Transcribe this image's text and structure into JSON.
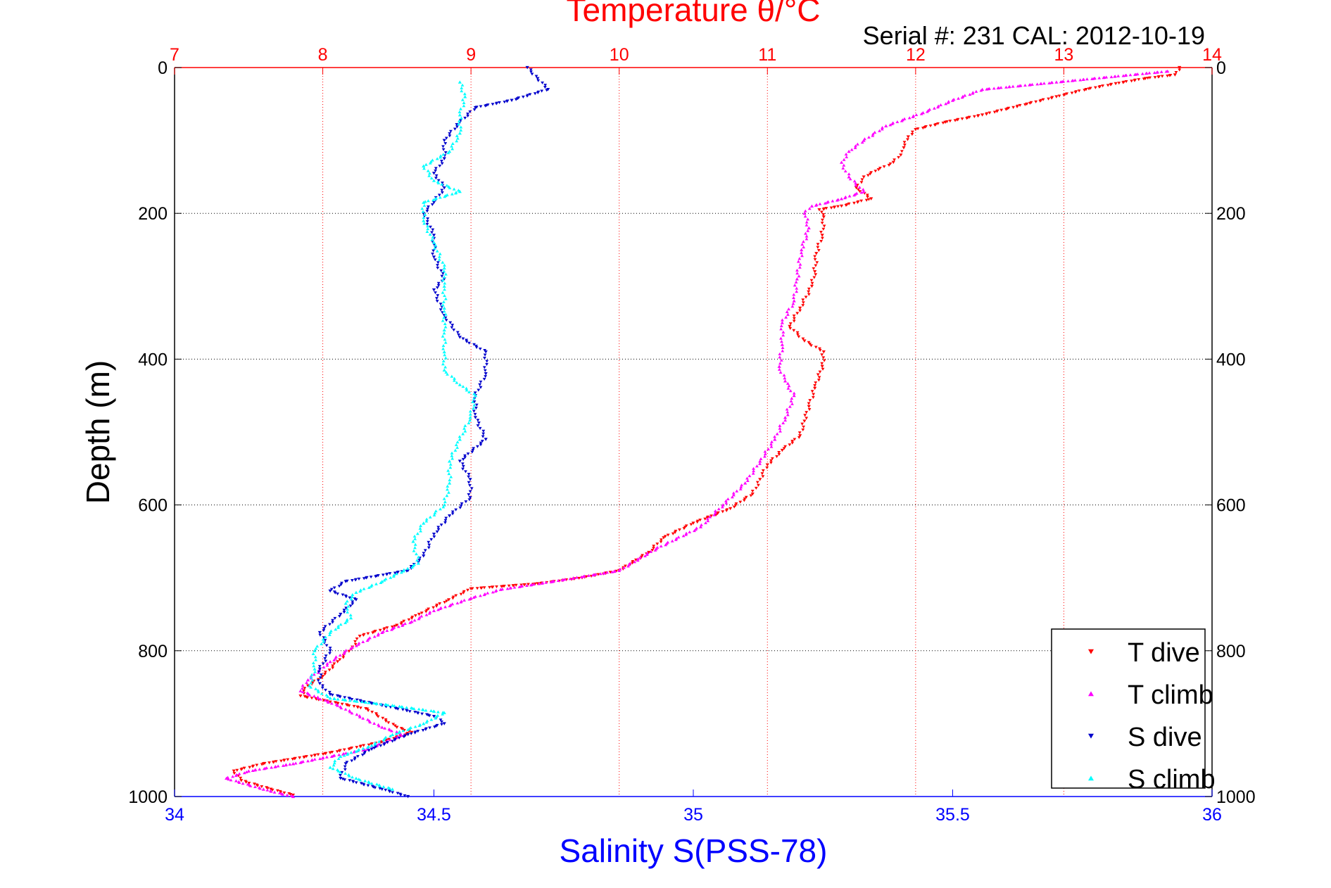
{
  "chart_data": {
    "type": "scatter",
    "title": "Temperature θ/°C",
    "subtitle": "Serial #: 231  CAL: 2012-10-19",
    "ylabel": "Depth (m)",
    "xlabel": "Salinity S(PSS-78)",
    "ylim": [
      0,
      1000
    ],
    "y_reversed": true,
    "x_bottom": {
      "label": "Salinity S(PSS-78)",
      "lim": [
        34,
        36
      ],
      "ticks": [
        34,
        34.5,
        35,
        35.5,
        36
      ],
      "color": "#0000ff"
    },
    "x_top": {
      "label": "Temperature θ/°C",
      "lim": [
        7,
        14
      ],
      "ticks": [
        7,
        8,
        9,
        10,
        11,
        12,
        13,
        14
      ],
      "color": "#ff0000"
    },
    "y_ticks": [
      0,
      200,
      400,
      600,
      800,
      1000
    ],
    "grid": true,
    "legend_position": "bottom-right",
    "series": [
      {
        "name": "T dive",
        "axis": "top",
        "marker": "triangle-down",
        "color": "#ff0000",
        "points": [
          [
            13.78,
            0
          ],
          [
            13.75,
            10
          ],
          [
            13.55,
            15
          ],
          [
            13.35,
            22
          ],
          [
            13.15,
            30
          ],
          [
            12.95,
            40
          ],
          [
            12.75,
            50
          ],
          [
            12.45,
            65
          ],
          [
            12.2,
            75
          ],
          [
            12.0,
            85
          ],
          [
            11.95,
            95
          ],
          [
            11.92,
            110
          ],
          [
            11.9,
            120
          ],
          [
            11.85,
            130
          ],
          [
            11.75,
            140
          ],
          [
            11.65,
            150
          ],
          [
            11.6,
            165
          ],
          [
            11.7,
            180
          ],
          [
            11.5,
            190
          ],
          [
            11.35,
            195
          ],
          [
            11.38,
            205
          ],
          [
            11.37,
            230
          ],
          [
            11.33,
            255
          ],
          [
            11.32,
            280
          ],
          [
            11.3,
            300
          ],
          [
            11.22,
            330
          ],
          [
            11.15,
            355
          ],
          [
            11.25,
            375
          ],
          [
            11.38,
            390
          ],
          [
            11.37,
            410
          ],
          [
            11.32,
            440
          ],
          [
            11.28,
            465
          ],
          [
            11.25,
            485
          ],
          [
            11.22,
            505
          ],
          [
            11.1,
            525
          ],
          [
            11.0,
            545
          ],
          [
            10.95,
            565
          ],
          [
            10.9,
            585
          ],
          [
            10.75,
            605
          ],
          [
            10.5,
            625
          ],
          [
            10.3,
            645
          ],
          [
            10.2,
            665
          ],
          [
            10.0,
            690
          ],
          [
            9.75,
            700
          ],
          [
            9.45,
            708
          ],
          [
            9.0,
            715
          ],
          [
            8.85,
            730
          ],
          [
            8.65,
            750
          ],
          [
            8.5,
            765
          ],
          [
            8.25,
            780
          ],
          [
            8.2,
            795
          ],
          [
            8.1,
            815
          ],
          [
            8.0,
            835
          ],
          [
            7.9,
            848
          ],
          [
            7.85,
            862
          ],
          [
            8.3,
            880
          ],
          [
            8.5,
            905
          ],
          [
            8.6,
            912
          ],
          [
            8.4,
            925
          ],
          [
            8.05,
            940
          ],
          [
            7.6,
            955
          ],
          [
            7.4,
            965
          ],
          [
            7.45,
            978
          ],
          [
            7.65,
            990
          ],
          [
            7.8,
            998
          ]
        ]
      },
      {
        "name": "T climb",
        "axis": "top",
        "marker": "triangle-up",
        "color": "#ff00ff",
        "points": [
          [
            13.7,
            5
          ],
          [
            12.95,
            20
          ],
          [
            12.45,
            30
          ],
          [
            12.25,
            45
          ],
          [
            12.05,
            62
          ],
          [
            11.8,
            80
          ],
          [
            11.65,
            100
          ],
          [
            11.55,
            115
          ],
          [
            11.5,
            130
          ],
          [
            11.55,
            150
          ],
          [
            11.65,
            170
          ],
          [
            11.5,
            180
          ],
          [
            11.3,
            190
          ],
          [
            11.25,
            200
          ],
          [
            11.28,
            220
          ],
          [
            11.23,
            250
          ],
          [
            11.2,
            290
          ],
          [
            11.18,
            320
          ],
          [
            11.1,
            350
          ],
          [
            11.1,
            380
          ],
          [
            11.08,
            410
          ],
          [
            11.12,
            430
          ],
          [
            11.18,
            450
          ],
          [
            11.12,
            480
          ],
          [
            11.05,
            510
          ],
          [
            10.95,
            540
          ],
          [
            10.85,
            570
          ],
          [
            10.7,
            600
          ],
          [
            10.55,
            630
          ],
          [
            10.25,
            660
          ],
          [
            10.0,
            690
          ],
          [
            9.55,
            705
          ],
          [
            9.2,
            716
          ],
          [
            9.0,
            728
          ],
          [
            8.75,
            745
          ],
          [
            8.6,
            760
          ],
          [
            8.4,
            775
          ],
          [
            8.2,
            795
          ],
          [
            8.05,
            815
          ],
          [
            7.9,
            840
          ],
          [
            7.85,
            855
          ],
          [
            8.1,
            875
          ],
          [
            8.4,
            905
          ],
          [
            8.55,
            915
          ],
          [
            8.3,
            935
          ],
          [
            7.8,
            955
          ],
          [
            7.5,
            965
          ],
          [
            7.35,
            975
          ],
          [
            7.6,
            990
          ],
          [
            7.8,
            1000
          ]
        ]
      },
      {
        "name": "S dive",
        "axis": "bottom",
        "marker": "triangle-down",
        "color": "#0000cc",
        "points": [
          [
            34.68,
            0
          ],
          [
            34.7,
            15
          ],
          [
            34.72,
            30
          ],
          [
            34.65,
            45
          ],
          [
            34.58,
            55
          ],
          [
            34.55,
            75
          ],
          [
            34.52,
            100
          ],
          [
            34.52,
            125
          ],
          [
            34.5,
            145
          ],
          [
            34.52,
            165
          ],
          [
            34.5,
            185
          ],
          [
            34.48,
            200
          ],
          [
            34.5,
            230
          ],
          [
            34.5,
            260
          ],
          [
            34.52,
            290
          ],
          [
            34.5,
            305
          ],
          [
            34.52,
            340
          ],
          [
            34.55,
            370
          ],
          [
            34.6,
            390
          ],
          [
            34.6,
            420
          ],
          [
            34.58,
            450
          ],
          [
            34.58,
            480
          ],
          [
            34.6,
            510
          ],
          [
            34.55,
            540
          ],
          [
            34.57,
            565
          ],
          [
            34.57,
            590
          ],
          [
            34.53,
            615
          ],
          [
            34.5,
            640
          ],
          [
            34.48,
            670
          ],
          [
            34.45,
            690
          ],
          [
            34.33,
            705
          ],
          [
            34.3,
            718
          ],
          [
            34.35,
            730
          ],
          [
            34.32,
            750
          ],
          [
            34.28,
            775
          ],
          [
            34.3,
            800
          ],
          [
            34.28,
            825
          ],
          [
            34.28,
            845
          ],
          [
            34.3,
            860
          ],
          [
            34.4,
            875
          ],
          [
            34.5,
            890
          ],
          [
            34.52,
            900
          ],
          [
            34.45,
            915
          ],
          [
            34.38,
            935
          ],
          [
            34.33,
            955
          ],
          [
            34.32,
            975
          ],
          [
            34.4,
            990
          ],
          [
            34.45,
            1000
          ]
        ]
      },
      {
        "name": "S climb",
        "axis": "bottom",
        "marker": "triangle-up",
        "color": "#00ffff",
        "points": [
          [
            34.55,
            20
          ],
          [
            34.56,
            40
          ],
          [
            34.55,
            65
          ],
          [
            34.55,
            90
          ],
          [
            34.53,
            115
          ],
          [
            34.48,
            135
          ],
          [
            34.5,
            155
          ],
          [
            34.55,
            170
          ],
          [
            34.48,
            185
          ],
          [
            34.48,
            210
          ],
          [
            34.5,
            240
          ],
          [
            34.52,
            275
          ],
          [
            34.52,
            300
          ],
          [
            34.52,
            330
          ],
          [
            34.52,
            360
          ],
          [
            34.52,
            390
          ],
          [
            34.52,
            415
          ],
          [
            34.55,
            435
          ],
          [
            34.58,
            450
          ],
          [
            34.57,
            480
          ],
          [
            34.55,
            510
          ],
          [
            34.53,
            540
          ],
          [
            34.53,
            570
          ],
          [
            34.52,
            600
          ],
          [
            34.48,
            625
          ],
          [
            34.46,
            650
          ],
          [
            34.47,
            680
          ],
          [
            34.4,
            705
          ],
          [
            34.35,
            720
          ],
          [
            34.33,
            735
          ],
          [
            34.34,
            755
          ],
          [
            34.3,
            775
          ],
          [
            34.27,
            800
          ],
          [
            34.27,
            825
          ],
          [
            34.26,
            848
          ],
          [
            34.3,
            865
          ],
          [
            34.42,
            875
          ],
          [
            34.52,
            885
          ],
          [
            34.48,
            900
          ],
          [
            34.42,
            915
          ],
          [
            34.38,
            930
          ],
          [
            34.32,
            945
          ],
          [
            34.3,
            960
          ],
          [
            34.35,
            975
          ],
          [
            34.42,
            990
          ]
        ]
      }
    ]
  }
}
